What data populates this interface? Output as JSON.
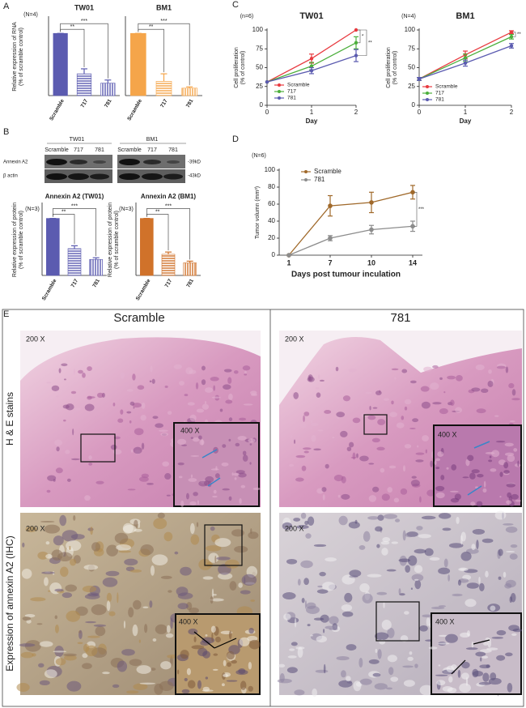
{
  "panel_labels": [
    "A",
    "B",
    "C",
    "D",
    "E"
  ],
  "chart_data": [
    {
      "type": "bar",
      "title": "TW01",
      "annotation": "(N=4)",
      "ylabel": [
        "Relative expression of RNA",
        "(% of scramble control)"
      ],
      "categories": [
        "Scramble",
        "717",
        "781"
      ],
      "values": [
        100,
        35,
        20
      ],
      "errors": [
        0,
        8,
        5
      ],
      "color": "#5b5bb0",
      "ylim": [
        0,
        125
      ],
      "significance": [
        "**",
        "***"
      ]
    },
    {
      "type": "bar",
      "title": "BM1",
      "categories": [
        "Scramble",
        "717",
        "781"
      ],
      "values": [
        100,
        23,
        12
      ],
      "errors": [
        0,
        12,
        2
      ],
      "color": "#f5a54a",
      "ylim": [
        0,
        125
      ],
      "significance": [
        "**",
        "***"
      ]
    },
    {
      "type": "bar",
      "title": "Annexin A2 (TW01)",
      "annotation": "(N=3)",
      "ylabel": [
        "Relative expression of protein",
        "(% of scramble control)"
      ],
      "categories": [
        "Scramble",
        "717",
        "781"
      ],
      "values": [
        100,
        47,
        28
      ],
      "errors": [
        0,
        5,
        3
      ],
      "color": "#5b5bb0",
      "ylim": [
        0,
        125
      ],
      "significance": [
        "**",
        "***"
      ]
    },
    {
      "type": "bar",
      "title": "Annexin A2 (BM1)",
      "annotation": "(N=3)",
      "ylabel": [
        "Relative expression of protein",
        "(% of scramble control)"
      ],
      "categories": [
        "Scramble",
        "717",
        "781"
      ],
      "values": [
        100,
        37,
        22
      ],
      "errors": [
        0,
        4,
        3
      ],
      "color": "#d0722a",
      "ylim": [
        0,
        125
      ],
      "significance": [
        "**",
        "***"
      ]
    },
    {
      "type": "line",
      "title": "TW01",
      "annotation": "(n=6)",
      "ylabel": [
        "Cell proliferation",
        "(% of control)"
      ],
      "xlabel": "Day",
      "x": [
        0,
        1,
        2
      ],
      "xlim": [
        0,
        2
      ],
      "xticks": [
        0,
        1,
        2
      ],
      "ylim": [
        0,
        100
      ],
      "yticks": [
        0,
        25,
        50,
        75,
        100
      ],
      "series": [
        {
          "name": "Scramble",
          "color": "#e8393f",
          "values": [
            31,
            62,
            100
          ],
          "errors": [
            0,
            6,
            0
          ]
        },
        {
          "name": "717",
          "color": "#4caf3c",
          "values": [
            31,
            52,
            83
          ],
          "errors": [
            0,
            5,
            8
          ]
        },
        {
          "name": "781",
          "color": "#5b5bb0",
          "values": [
            31,
            46,
            66
          ],
          "errors": [
            0,
            4,
            8
          ]
        }
      ],
      "significance": [
        "*",
        "**"
      ]
    },
    {
      "type": "line",
      "title": "BM1",
      "annotation": "(N=4)",
      "ylabel": [
        "Cell proliferation",
        "(% of control)"
      ],
      "xlabel": "Day",
      "x": [
        0,
        1,
        2
      ],
      "xlim": [
        0,
        2
      ],
      "xticks": [
        0,
        1,
        2
      ],
      "ylim": [
        0,
        100
      ],
      "yticks": [
        0,
        25,
        50,
        75,
        100
      ],
      "series": [
        {
          "name": "Scramble",
          "color": "#e8393f",
          "values": [
            35,
            67,
            97
          ],
          "errors": [
            2,
            5,
            2
          ]
        },
        {
          "name": "717",
          "color": "#4caf3c",
          "values": [
            35,
            63,
            91
          ],
          "errors": [
            2,
            5,
            3
          ]
        },
        {
          "name": "781",
          "color": "#5b5bb0",
          "values": [
            35,
            56,
            79
          ],
          "errors": [
            2,
            4,
            3
          ]
        }
      ],
      "significance": [
        "**"
      ]
    },
    {
      "type": "line",
      "annotation": "(N=6)",
      "ylabel": [
        "Tumor volumn (mm³)"
      ],
      "xlabel": "Days post tumour inculation",
      "categories": [
        "1",
        "7",
        "10",
        "14"
      ],
      "ylim": [
        0,
        100
      ],
      "yticks": [
        0,
        20,
        40,
        60,
        80,
        100
      ],
      "series": [
        {
          "name": "Scramble",
          "color": "#a0692a",
          "values": [
            0,
            58,
            62,
            74
          ],
          "errors": [
            0,
            12,
            12,
            8
          ]
        },
        {
          "name": "781",
          "color": "#8c8c8c",
          "values": [
            0,
            20,
            30,
            34
          ],
          "errors": [
            0,
            3,
            5,
            6
          ]
        }
      ],
      "significance": [
        "***"
      ]
    }
  ],
  "blot": {
    "cell_lines": [
      "TW01",
      "BM1"
    ],
    "lanes": [
      "Scramble",
      "717",
      "781",
      "Scramble",
      "717",
      "781"
    ],
    "rows": [
      "Annexin A2",
      "β actin"
    ],
    "sizes": [
      "-39kD",
      "-43kD"
    ]
  },
  "histology": {
    "columns": [
      "Scramble",
      "781"
    ],
    "rows": [
      "H & E stains",
      "Expression of annexin A2 (IHC)"
    ],
    "magnifications": [
      "200 X",
      "400 X"
    ]
  }
}
